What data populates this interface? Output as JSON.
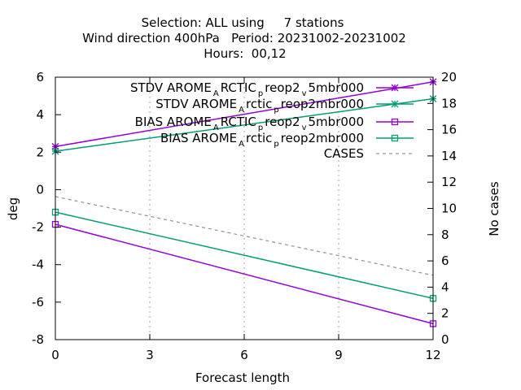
{
  "chart_data": {
    "type": "line",
    "title_lines": [
      "Selection: ALL using     7 stations",
      "Wind direction 400hPa   Period: 20231002-20231002",
      "Hours:  00,12"
    ],
    "xlabel": "Forecast length",
    "ylabel": "deg",
    "y2label": "No cases",
    "xlim": [
      0,
      12
    ],
    "ylim": [
      -8,
      6
    ],
    "y2lim": [
      0,
      20
    ],
    "xticks": [
      "0",
      "3",
      "6",
      "9",
      "12"
    ],
    "yticks": [
      "-8",
      "-6",
      "-4",
      "-2",
      "0",
      "2",
      "4",
      "6"
    ],
    "y2ticks": [
      "0",
      "2",
      "4",
      "6",
      "8",
      "10",
      "12",
      "14",
      "16",
      "18",
      "20"
    ],
    "grid": true,
    "legend_position": "top-right",
    "series": [
      {
        "name_parts": [
          "STDV AROME",
          "A",
          "RCTIC",
          "p",
          "reop2",
          "v",
          "5mbr000"
        ],
        "axis": "y1",
        "marker": "star",
        "color": "#9400d3",
        "x": [
          0,
          12
        ],
        "y": [
          2.3,
          5.75
        ]
      },
      {
        "name_parts": [
          "STDV AROME",
          "A",
          "rctic",
          "p",
          "reop2mbr000"
        ],
        "axis": "y1",
        "marker": "star",
        "color": "#009e73",
        "x": [
          0,
          12
        ],
        "y": [
          2.05,
          4.85
        ]
      },
      {
        "name_parts": [
          "BIAS AROME",
          "A",
          "RCTIC",
          "p",
          "reop2",
          "v",
          "5mbr000"
        ],
        "axis": "y1",
        "marker": "square",
        "color": "#9400d3",
        "x": [
          0,
          12
        ],
        "y": [
          -1.85,
          -7.15
        ]
      },
      {
        "name_parts": [
          "BIAS AROME",
          "A",
          "rctic",
          "p",
          "reop2mbr000"
        ],
        "axis": "y1",
        "marker": "square",
        "color": "#009e73",
        "x": [
          0,
          12
        ],
        "y": [
          -1.2,
          -5.8
        ]
      },
      {
        "name_parts": [
          "CASES"
        ],
        "axis": "y2",
        "marker": "none",
        "color": "#999999",
        "dashed": true,
        "x": [
          0,
          12
        ],
        "y": [
          10.9,
          4.9
        ]
      }
    ]
  }
}
